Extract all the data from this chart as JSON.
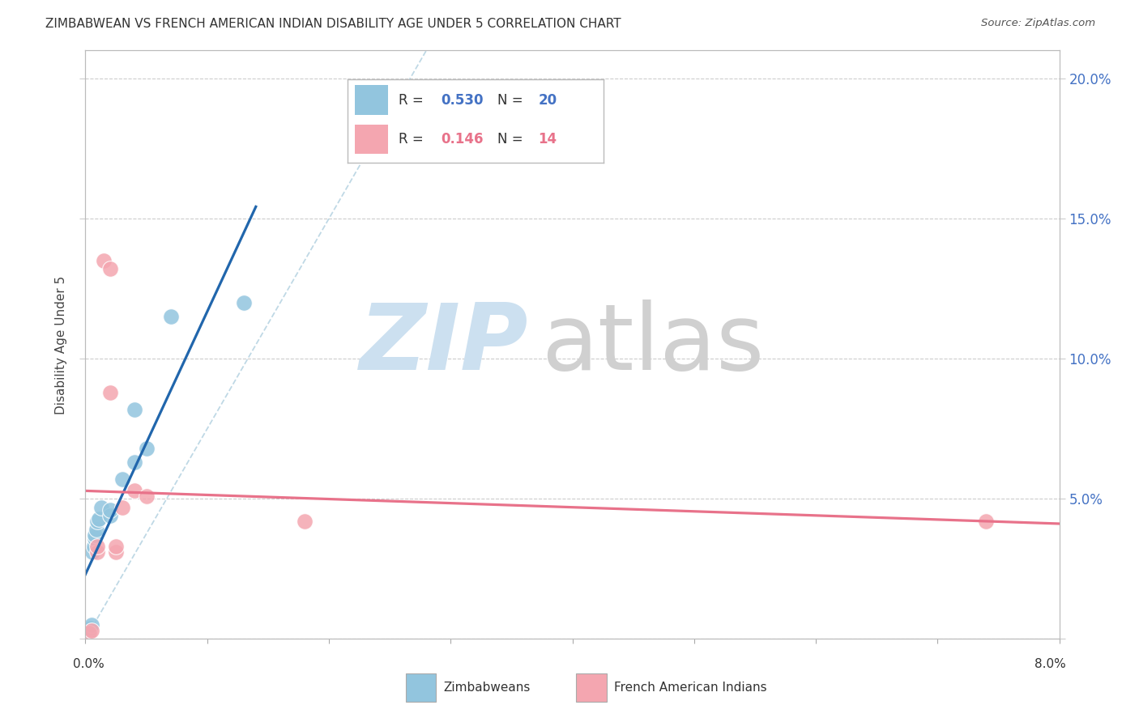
{
  "title": "ZIMBABWEAN VS FRENCH AMERICAN INDIAN DISABILITY AGE UNDER 5 CORRELATION CHART",
  "source": "Source: ZipAtlas.com",
  "ylabel": "Disability Age Under 5",
  "blue_R": 0.53,
  "blue_N": 20,
  "pink_R": 0.146,
  "pink_N": 14,
  "blue_label": "Zimbabweans",
  "pink_label": "French American Indians",
  "blue_color": "#92c5de",
  "pink_color": "#f4a6b0",
  "blue_line_color": "#2166ac",
  "pink_line_color": "#e8728a",
  "blue_scatter_x": [
    0.0002,
    0.0003,
    0.0004,
    0.0005,
    0.0006,
    0.0007,
    0.0008,
    0.0008,
    0.0009,
    0.001,
    0.0011,
    0.0013,
    0.002,
    0.002,
    0.003,
    0.004,
    0.004,
    0.005,
    0.007,
    0.013
  ],
  "blue_scatter_y": [
    0.002,
    0.003,
    0.004,
    0.005,
    0.031,
    0.033,
    0.036,
    0.037,
    0.039,
    0.042,
    0.043,
    0.047,
    0.044,
    0.046,
    0.057,
    0.063,
    0.082,
    0.068,
    0.115,
    0.12
  ],
  "pink_scatter_x": [
    0.0003,
    0.0005,
    0.001,
    0.001,
    0.0015,
    0.002,
    0.002,
    0.0025,
    0.0025,
    0.003,
    0.004,
    0.005,
    0.018,
    0.074
  ],
  "pink_scatter_y": [
    0.002,
    0.003,
    0.031,
    0.033,
    0.135,
    0.132,
    0.088,
    0.031,
    0.033,
    0.047,
    0.053,
    0.051,
    0.042,
    0.042
  ],
  "xmin": 0.0,
  "xmax": 0.08,
  "ymin": 0.0,
  "ymax": 0.21,
  "yticks": [
    0.0,
    0.05,
    0.1,
    0.15,
    0.2
  ],
  "ytick_labels_right": [
    "",
    "5.0%",
    "10.0%",
    "15.0%",
    "20.0%"
  ],
  "xticks": [
    0.0,
    0.01,
    0.02,
    0.03,
    0.04,
    0.05,
    0.06,
    0.07,
    0.08
  ],
  "background_color": "#ffffff",
  "grid_color": "#cccccc",
  "right_axis_color": "#4472c4",
  "pink_axis_color": "#e8728a",
  "title_color": "#333333"
}
